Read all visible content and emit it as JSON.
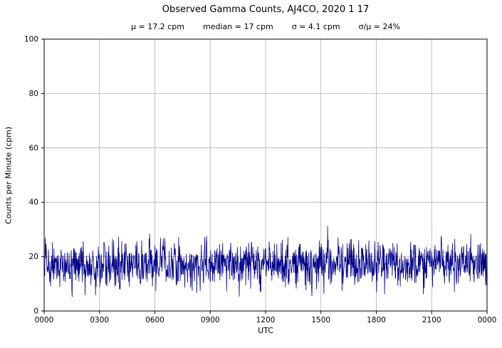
{
  "chart_data": {
    "type": "line",
    "title": "Observed Gamma Counts, AJ4CO, 2020 1 17",
    "stats": [
      "μ = 17.2 cpm",
      "median = 17 cpm",
      "σ = 4.1 cpm",
      "σ/μ = 24%"
    ],
    "xlabel": "UTC",
    "ylabel": "Counts per Minute (cpm)",
    "x_tick_labels": [
      "0000",
      "0300",
      "0600",
      "0900",
      "1200",
      "1500",
      "1800",
      "2100",
      "0000"
    ],
    "y_ticks": [
      0,
      20,
      40,
      60,
      80,
      100
    ],
    "ylim": [
      0,
      100
    ],
    "grid": true,
    "legend": "none",
    "series": [
      {
        "name": "observed gamma counts",
        "color": "#00008B",
        "n_points": 1440,
        "mean": 17.2,
        "median": 17,
        "sigma": 4.1,
        "observed_min": 4,
        "observed_max": 32
      }
    ],
    "colors": {
      "line": "#00008B",
      "grid": "#b0b0b0",
      "axis": "#000000",
      "background": "#ffffff"
    }
  }
}
